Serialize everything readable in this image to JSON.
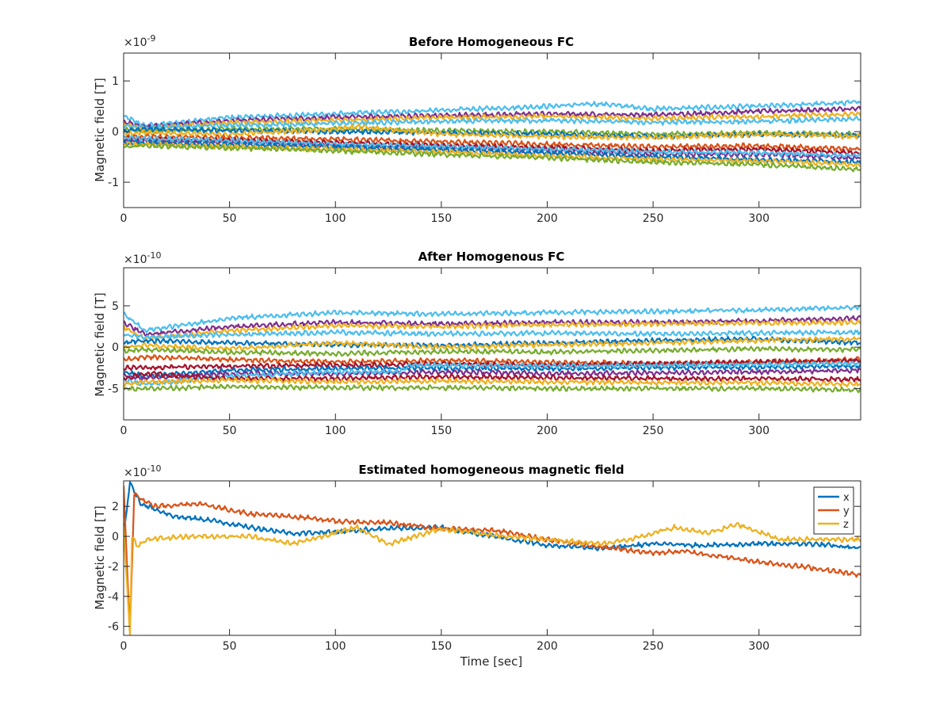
{
  "chart_data": [
    {
      "type": "line",
      "title": "Before Homogeneous FC",
      "ylabel": "Magnetic field [T]",
      "xlabel": "",
      "xlim": [
        0,
        348
      ],
      "ylim": [
        -1.5,
        1.55
      ],
      "exponent_label": "×10",
      "exponent_power": "-9",
      "xticks": [
        0,
        50,
        100,
        150,
        200,
        250,
        300
      ],
      "xtick_labels": [
        "0",
        "50",
        "100",
        "150",
        "200",
        "250",
        "300"
      ],
      "yticks": [
        -1,
        0,
        1
      ],
      "ytick_labels": [
        "-1",
        "0",
        "1"
      ],
      "grid": false,
      "legend": null,
      "series": [
        {
          "color": "#4DBEEE",
          "x": [
            0,
            10,
            50,
            100,
            150,
            200,
            225,
            250,
            300,
            348
          ],
          "values": [
            0.3,
            0.12,
            0.28,
            0.35,
            0.42,
            0.5,
            0.55,
            0.45,
            0.5,
            0.58
          ]
        },
        {
          "color": "#7E2F8E",
          "x": [
            0,
            10,
            50,
            100,
            150,
            200,
            250,
            300,
            348
          ],
          "values": [
            0.2,
            0.1,
            0.22,
            0.28,
            0.32,
            0.35,
            0.33,
            0.4,
            0.45
          ]
        },
        {
          "color": "#EDB120",
          "x": [
            0,
            10,
            50,
            100,
            150,
            200,
            250,
            300,
            348
          ],
          "values": [
            0.15,
            0.06,
            0.18,
            0.22,
            0.28,
            0.3,
            0.26,
            0.3,
            0.35
          ]
        },
        {
          "color": "#4DBEEE",
          "x": [
            0,
            10,
            50,
            100,
            150,
            200,
            250,
            300,
            348
          ],
          "values": [
            0.1,
            0.08,
            0.12,
            0.16,
            0.2,
            0.22,
            0.18,
            0.2,
            0.25
          ]
        },
        {
          "color": "#77AC30",
          "x": [
            0,
            10,
            50,
            100,
            150,
            200,
            250,
            300,
            348
          ],
          "values": [
            0.05,
            0.0,
            0.05,
            0.05,
            0.02,
            0.0,
            -0.05,
            -0.03,
            -0.05
          ]
        },
        {
          "color": "#0072BD",
          "x": [
            0,
            10,
            50,
            100,
            150,
            200,
            250,
            300,
            348
          ],
          "values": [
            0.0,
            0.05,
            0.02,
            0.0,
            -0.02,
            -0.05,
            -0.1,
            -0.05,
            -0.08
          ]
        },
        {
          "color": "#EDB120",
          "x": [
            0,
            10,
            50,
            100,
            110,
            150,
            200,
            250,
            300,
            348
          ],
          "values": [
            -0.05,
            -0.02,
            -0.05,
            0.05,
            0.1,
            -0.05,
            -0.1,
            -0.12,
            -0.05,
            -0.1
          ]
        },
        {
          "color": "#D95319",
          "x": [
            0,
            10,
            50,
            100,
            150,
            200,
            250,
            300,
            348
          ],
          "values": [
            -0.1,
            -0.1,
            -0.12,
            -0.15,
            -0.2,
            -0.25,
            -0.3,
            -0.28,
            -0.35
          ]
        },
        {
          "color": "#A2142F",
          "x": [
            0,
            10,
            50,
            100,
            150,
            200,
            250,
            300,
            348
          ],
          "values": [
            -0.15,
            -0.15,
            -0.18,
            -0.22,
            -0.28,
            -0.32,
            -0.38,
            -0.35,
            -0.42
          ]
        },
        {
          "color": "#7E2F8E",
          "x": [
            0,
            10,
            50,
            100,
            150,
            200,
            250,
            300,
            348
          ],
          "values": [
            -0.2,
            -0.2,
            -0.22,
            -0.28,
            -0.32,
            -0.38,
            -0.45,
            -0.45,
            -0.52
          ]
        },
        {
          "color": "#4DBEEE",
          "x": [
            0,
            10,
            50,
            100,
            150,
            200,
            250,
            300,
            348
          ],
          "values": [
            -0.12,
            -0.14,
            -0.18,
            -0.25,
            -0.3,
            -0.35,
            -0.4,
            -0.42,
            -0.48
          ]
        },
        {
          "color": "#0072BD",
          "x": [
            0,
            10,
            50,
            100,
            150,
            200,
            250,
            300,
            348
          ],
          "values": [
            -0.22,
            -0.22,
            -0.25,
            -0.3,
            -0.36,
            -0.42,
            -0.5,
            -0.55,
            -0.6
          ]
        },
        {
          "color": "#EDB120",
          "x": [
            0,
            10,
            50,
            100,
            150,
            200,
            250,
            300,
            348
          ],
          "values": [
            -0.25,
            -0.25,
            -0.3,
            -0.35,
            -0.4,
            -0.48,
            -0.55,
            -0.58,
            -0.65
          ]
        },
        {
          "color": "#77AC30",
          "x": [
            0,
            10,
            50,
            100,
            150,
            200,
            250,
            300,
            348
          ],
          "values": [
            -0.3,
            -0.28,
            -0.32,
            -0.38,
            -0.45,
            -0.52,
            -0.6,
            -0.65,
            -0.75
          ]
        }
      ]
    },
    {
      "type": "line",
      "title": "After Homogenous FC",
      "ylabel": "Magnetic field [T]",
      "xlabel": "",
      "xlim": [
        0,
        348
      ],
      "ylim": [
        -8.8,
        9.6
      ],
      "exponent_label": "×10",
      "exponent_power": "-10",
      "xticks": [
        0,
        50,
        100,
        150,
        200,
        250,
        300
      ],
      "xtick_labels": [
        "0",
        "50",
        "100",
        "150",
        "200",
        "250",
        "300"
      ],
      "yticks": [
        -5,
        0,
        5
      ],
      "ytick_labels": [
        "-5",
        "0",
        "5"
      ],
      "grid": false,
      "legend": null,
      "series": [
        {
          "color": "#4DBEEE",
          "x": [
            0,
            10,
            50,
            100,
            150,
            200,
            250,
            300,
            348
          ],
          "values": [
            4.0,
            2.0,
            3.5,
            4.2,
            4.0,
            4.2,
            4.3,
            4.5,
            4.8
          ]
        },
        {
          "color": "#7E2F8E",
          "x": [
            0,
            10,
            50,
            100,
            150,
            200,
            250,
            300,
            348
          ],
          "values": [
            3.0,
            1.5,
            2.5,
            3.0,
            2.8,
            3.0,
            3.0,
            3.2,
            3.5
          ]
        },
        {
          "color": "#EDB120",
          "x": [
            0,
            10,
            50,
            100,
            150,
            200,
            250,
            300,
            348
          ],
          "values": [
            2.5,
            1.0,
            2.0,
            2.6,
            2.5,
            2.7,
            2.8,
            2.9,
            3.0
          ]
        },
        {
          "color": "#4DBEEE",
          "x": [
            0,
            10,
            50,
            100,
            150,
            200,
            250,
            300,
            348
          ],
          "values": [
            1.5,
            1.2,
            1.5,
            1.8,
            1.6,
            1.7,
            1.6,
            1.7,
            1.8
          ]
        },
        {
          "color": "#0072BD",
          "x": [
            0,
            10,
            50,
            100,
            150,
            200,
            250,
            300,
            348
          ],
          "values": [
            0.5,
            0.8,
            0.5,
            0.3,
            0.2,
            0.5,
            0.8,
            1.0,
            0.5
          ]
        },
        {
          "color": "#EDB120",
          "x": [
            0,
            10,
            50,
            100,
            150,
            200,
            250,
            300,
            348
          ],
          "values": [
            0.0,
            0.2,
            -0.2,
            0.5,
            0.0,
            0.3,
            0.5,
            0.8,
            1.0
          ]
        },
        {
          "color": "#77AC30",
          "x": [
            0,
            10,
            50,
            100,
            150,
            200,
            250,
            300,
            348
          ],
          "values": [
            -0.5,
            -0.3,
            -0.6,
            -0.8,
            -0.5,
            -0.6,
            -0.4,
            -0.2,
            -0.3
          ]
        },
        {
          "color": "#D95319",
          "x": [
            0,
            10,
            50,
            100,
            150,
            200,
            250,
            300,
            348
          ],
          "values": [
            -1.5,
            -1.2,
            -1.5,
            -1.8,
            -1.6,
            -1.8,
            -2.0,
            -1.8,
            -1.5
          ]
        },
        {
          "color": "#A2142F",
          "x": [
            0,
            10,
            50,
            100,
            150,
            200,
            250,
            300,
            348
          ],
          "values": [
            -2.5,
            -2.5,
            -2.3,
            -2.2,
            -2.0,
            -2.2,
            -2.0,
            -1.8,
            -1.6
          ]
        },
        {
          "color": "#0072BD",
          "x": [
            0,
            10,
            50,
            100,
            150,
            200,
            250,
            300,
            348
          ],
          "values": [
            -3.0,
            -3.5,
            -2.8,
            -2.6,
            -2.5,
            -2.6,
            -2.5,
            -2.4,
            -2.3
          ]
        },
        {
          "color": "#7E2F8E",
          "x": [
            0,
            10,
            50,
            100,
            150,
            200,
            250,
            300,
            348
          ],
          "values": [
            -3.5,
            -3.8,
            -3.2,
            -3.2,
            -3.0,
            -3.2,
            -3.1,
            -3.0,
            -2.8
          ]
        },
        {
          "color": "#4DBEEE",
          "x": [
            0,
            10,
            50,
            100,
            130,
            135,
            150,
            200,
            250,
            300,
            348
          ],
          "values": [
            -4.0,
            -4.5,
            -3.5,
            -3.0,
            -3.0,
            -2.2,
            -2.2,
            -2.3,
            -2.2,
            -2.1,
            -2.0
          ]
        },
        {
          "color": "#A2142F",
          "x": [
            0,
            10,
            50,
            100,
            150,
            200,
            250,
            300,
            348
          ],
          "values": [
            -3.8,
            -3.2,
            -3.8,
            -3.8,
            -3.6,
            -3.7,
            -3.8,
            -3.8,
            -3.9
          ]
        },
        {
          "color": "#EDB120",
          "x": [
            0,
            10,
            50,
            100,
            150,
            200,
            250,
            300,
            348
          ],
          "values": [
            -4.5,
            -4.2,
            -4.0,
            -4.2,
            -4.1,
            -4.2,
            -4.3,
            -4.3,
            -4.5
          ]
        },
        {
          "color": "#77AC30",
          "x": [
            0,
            10,
            50,
            100,
            150,
            200,
            250,
            300,
            348
          ],
          "values": [
            -5.0,
            -5.0,
            -4.8,
            -4.9,
            -4.9,
            -5.0,
            -5.0,
            -5.0,
            -5.2
          ]
        }
      ]
    },
    {
      "type": "line",
      "title": "Estimated homogeneous magnetic field",
      "ylabel": "Magnetic field [T]",
      "xlabel": "Time [sec]",
      "xlim": [
        0,
        348
      ],
      "ylim": [
        -6.6,
        3.7
      ],
      "exponent_label": "×10",
      "exponent_power": "-10",
      "xticks": [
        0,
        50,
        100,
        150,
        200,
        250,
        300
      ],
      "xtick_labels": [
        "0",
        "50",
        "100",
        "150",
        "200",
        "250",
        "300"
      ],
      "yticks": [
        -6,
        -4,
        -2,
        0,
        2
      ],
      "ytick_labels": [
        "-6",
        "-4",
        "-2",
        "0",
        "2"
      ],
      "grid": false,
      "legend": "top-right",
      "series": [
        {
          "name": "x",
          "color": "#0072BD",
          "x": [
            0,
            3,
            5,
            8,
            15,
            25,
            40,
            60,
            80,
            100,
            120,
            150,
            175,
            200,
            225,
            250,
            275,
            300,
            325,
            348
          ],
          "values": [
            0.0,
            3.6,
            3.0,
            2.2,
            1.8,
            1.3,
            1.1,
            0.6,
            0.2,
            0.3,
            0.5,
            0.6,
            0.0,
            -0.6,
            -0.8,
            -0.5,
            -0.6,
            -0.5,
            -0.5,
            -0.8
          ]
        },
        {
          "name": "y",
          "color": "#D95319",
          "x": [
            0,
            3,
            5,
            8,
            15,
            35,
            60,
            90,
            100,
            125,
            150,
            175,
            200,
            225,
            250,
            265,
            300,
            325,
            348
          ],
          "values": [
            3.2,
            -6.3,
            3.0,
            2.5,
            2.0,
            2.2,
            1.5,
            1.2,
            1.0,
            0.9,
            0.5,
            0.4,
            -0.2,
            -0.7,
            -1.1,
            -1.0,
            -1.7,
            -2.1,
            -2.6
          ]
        },
        {
          "name": "z",
          "color": "#EDB120",
          "x": [
            0,
            3,
            4,
            6,
            12,
            30,
            60,
            80,
            110,
            125,
            150,
            180,
            200,
            225,
            240,
            260,
            275,
            290,
            310,
            348
          ],
          "values": [
            0.6,
            -6.6,
            0.2,
            -0.6,
            -0.2,
            0.0,
            0.0,
            -0.5,
            0.6,
            -0.5,
            0.5,
            0.0,
            -0.2,
            -0.5,
            -0.2,
            0.6,
            0.2,
            0.8,
            -0.2,
            -0.2
          ]
        }
      ]
    }
  ]
}
